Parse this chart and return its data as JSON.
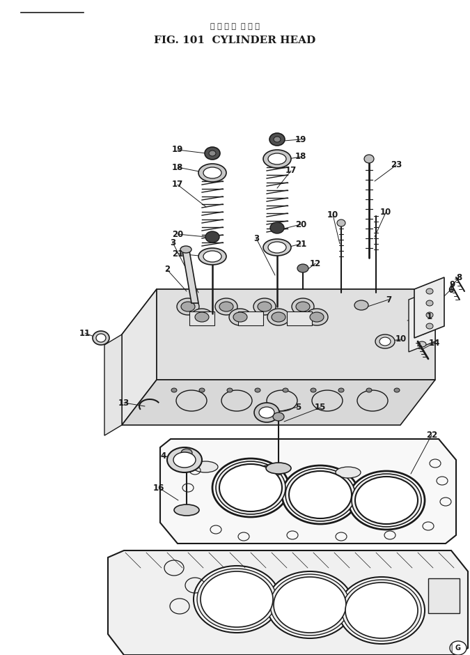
{
  "title_japanese": "シ リ ン ダ  ヘ ッ ド",
  "title_english": "FIG. 101  CYLINDER HEAD",
  "background_color": "#ffffff",
  "line_color": "#1a1a1a",
  "fig_width": 6.75,
  "fig_height": 9.4,
  "dpi": 100
}
